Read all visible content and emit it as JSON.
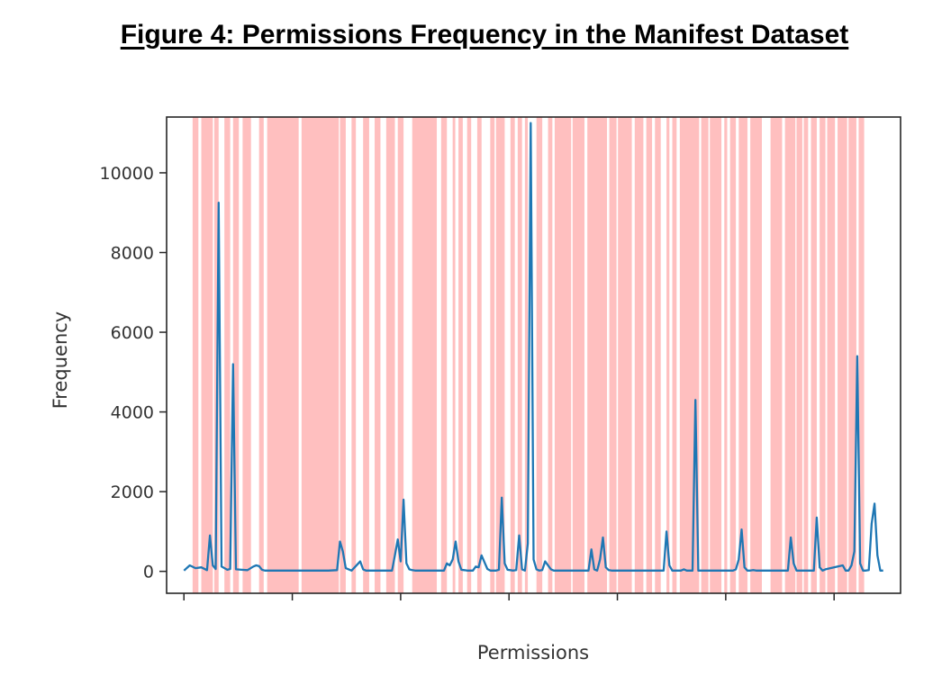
{
  "title": "Figure 4: Permissions Frequency in the Manifest Dataset",
  "chart_data": {
    "type": "line",
    "xlabel": "Permissions",
    "ylabel": "Frequency",
    "xlim": [
      -6,
      248
    ],
    "ylim": [
      -550,
      11400
    ],
    "yticks": [
      0,
      2000,
      4000,
      6000,
      8000,
      10000
    ],
    "xticks": [
      0,
      37.5,
      75,
      112.5,
      150,
      187.5,
      225
    ],
    "grid": false,
    "colors": {
      "line": "#1f77b4",
      "band": "#ff7f7f",
      "axes": "#262626"
    },
    "series": [
      {
        "x": [
          0,
          2,
          4,
          6,
          8,
          9,
          10,
          11,
          12,
          13,
          15,
          16,
          17,
          18,
          20,
          22,
          24,
          25,
          26,
          27,
          28,
          30,
          40,
          50,
          53,
          54,
          55,
          56,
          58,
          61,
          62,
          63,
          64,
          68,
          72,
          73,
          74,
          75,
          76,
          77,
          78,
          79,
          80,
          90,
          91,
          92,
          93,
          94,
          95,
          96,
          97,
          98,
          100,
          101,
          102,
          103,
          105,
          106,
          107,
          108,
          109,
          110,
          111,
          112,
          114,
          115,
          116,
          117,
          118,
          119,
          120,
          121,
          122,
          123,
          124,
          125,
          127,
          128,
          129,
          130,
          140,
          141,
          142,
          143,
          144,
          145,
          146,
          147,
          148,
          150,
          160,
          166,
          167,
          168,
          169,
          170,
          172,
          173,
          174,
          175,
          176,
          177,
          178,
          179,
          180,
          190,
          191,
          192,
          193,
          194,
          195,
          196,
          197,
          198,
          200,
          208,
          209,
          210,
          211,
          212,
          218,
          219,
          220,
          221,
          222,
          228,
          229,
          230,
          231,
          232,
          233,
          234,
          235,
          236,
          237,
          238,
          239,
          240,
          241,
          242
        ],
        "values": [
          20,
          150,
          80,
          100,
          30,
          900,
          150,
          60,
          9250,
          120,
          40,
          60,
          5200,
          50,
          40,
          30,
          120,
          150,
          130,
          40,
          20,
          20,
          20,
          20,
          30,
          750,
          500,
          80,
          20,
          250,
          50,
          20,
          20,
          20,
          20,
          400,
          800,
          250,
          1800,
          200,
          50,
          30,
          20,
          20,
          200,
          150,
          300,
          750,
          250,
          40,
          30,
          20,
          20,
          120,
          100,
          400,
          60,
          20,
          20,
          20,
          40,
          1850,
          200,
          40,
          20,
          30,
          900,
          50,
          20,
          700,
          11250,
          300,
          50,
          20,
          30,
          250,
          50,
          20,
          20,
          20,
          20,
          550,
          50,
          20,
          300,
          850,
          100,
          30,
          20,
          20,
          20,
          20,
          1000,
          150,
          20,
          20,
          20,
          50,
          20,
          20,
          20,
          4300,
          20,
          20,
          20,
          20,
          50,
          300,
          1050,
          100,
          20,
          20,
          30,
          20,
          20,
          20,
          20,
          850,
          200,
          20,
          20,
          1350,
          100,
          20,
          50,
          150,
          20,
          20,
          150,
          500,
          5400,
          200,
          20,
          20,
          30,
          1200,
          1700,
          400,
          20,
          20
        ]
      }
    ],
    "bands": [
      [
        3,
        5
      ],
      [
        6,
        10
      ],
      [
        10.5,
        12
      ],
      [
        14,
        16
      ],
      [
        17,
        19
      ],
      [
        20.3,
        23.2
      ],
      [
        26,
        27.6
      ],
      [
        28.8,
        39.7
      ],
      [
        40.7,
        53.6
      ],
      [
        54,
        56
      ],
      [
        58,
        59.5
      ],
      [
        62,
        64.1
      ],
      [
        66,
        68
      ],
      [
        70,
        73
      ],
      [
        74,
        76
      ],
      [
        79,
        87.5
      ],
      [
        89,
        91
      ],
      [
        93,
        93.9
      ],
      [
        95,
        96.5
      ],
      [
        98,
        99.4
      ],
      [
        101.5,
        103
      ],
      [
        106,
        107.5
      ],
      [
        108,
        111
      ],
      [
        113,
        114.5
      ],
      [
        115.5,
        117
      ],
      [
        118,
        119
      ],
      [
        122,
        124
      ],
      [
        126,
        127.5
      ],
      [
        128.3,
        134
      ],
      [
        134.5,
        138.6
      ],
      [
        139.6,
        146.4
      ],
      [
        147.2,
        149.7
      ],
      [
        150.2,
        155
      ],
      [
        156,
        159
      ],
      [
        160,
        162
      ],
      [
        163,
        165
      ],
      [
        167,
        168
      ],
      [
        169,
        170.5
      ],
      [
        171.6,
        178.3
      ],
      [
        179,
        181.5
      ],
      [
        182,
        186
      ],
      [
        187,
        188
      ],
      [
        189,
        191
      ],
      [
        192,
        195
      ],
      [
        196,
        200
      ],
      [
        203,
        207
      ],
      [
        208,
        211.6
      ],
      [
        212,
        214
      ],
      [
        214.5,
        216
      ],
      [
        217,
        219
      ],
      [
        220,
        222
      ],
      [
        222.6,
        225.3
      ],
      [
        226.2,
        229.5
      ],
      [
        230,
        232.7
      ],
      [
        233.5,
        235.4
      ]
    ]
  }
}
